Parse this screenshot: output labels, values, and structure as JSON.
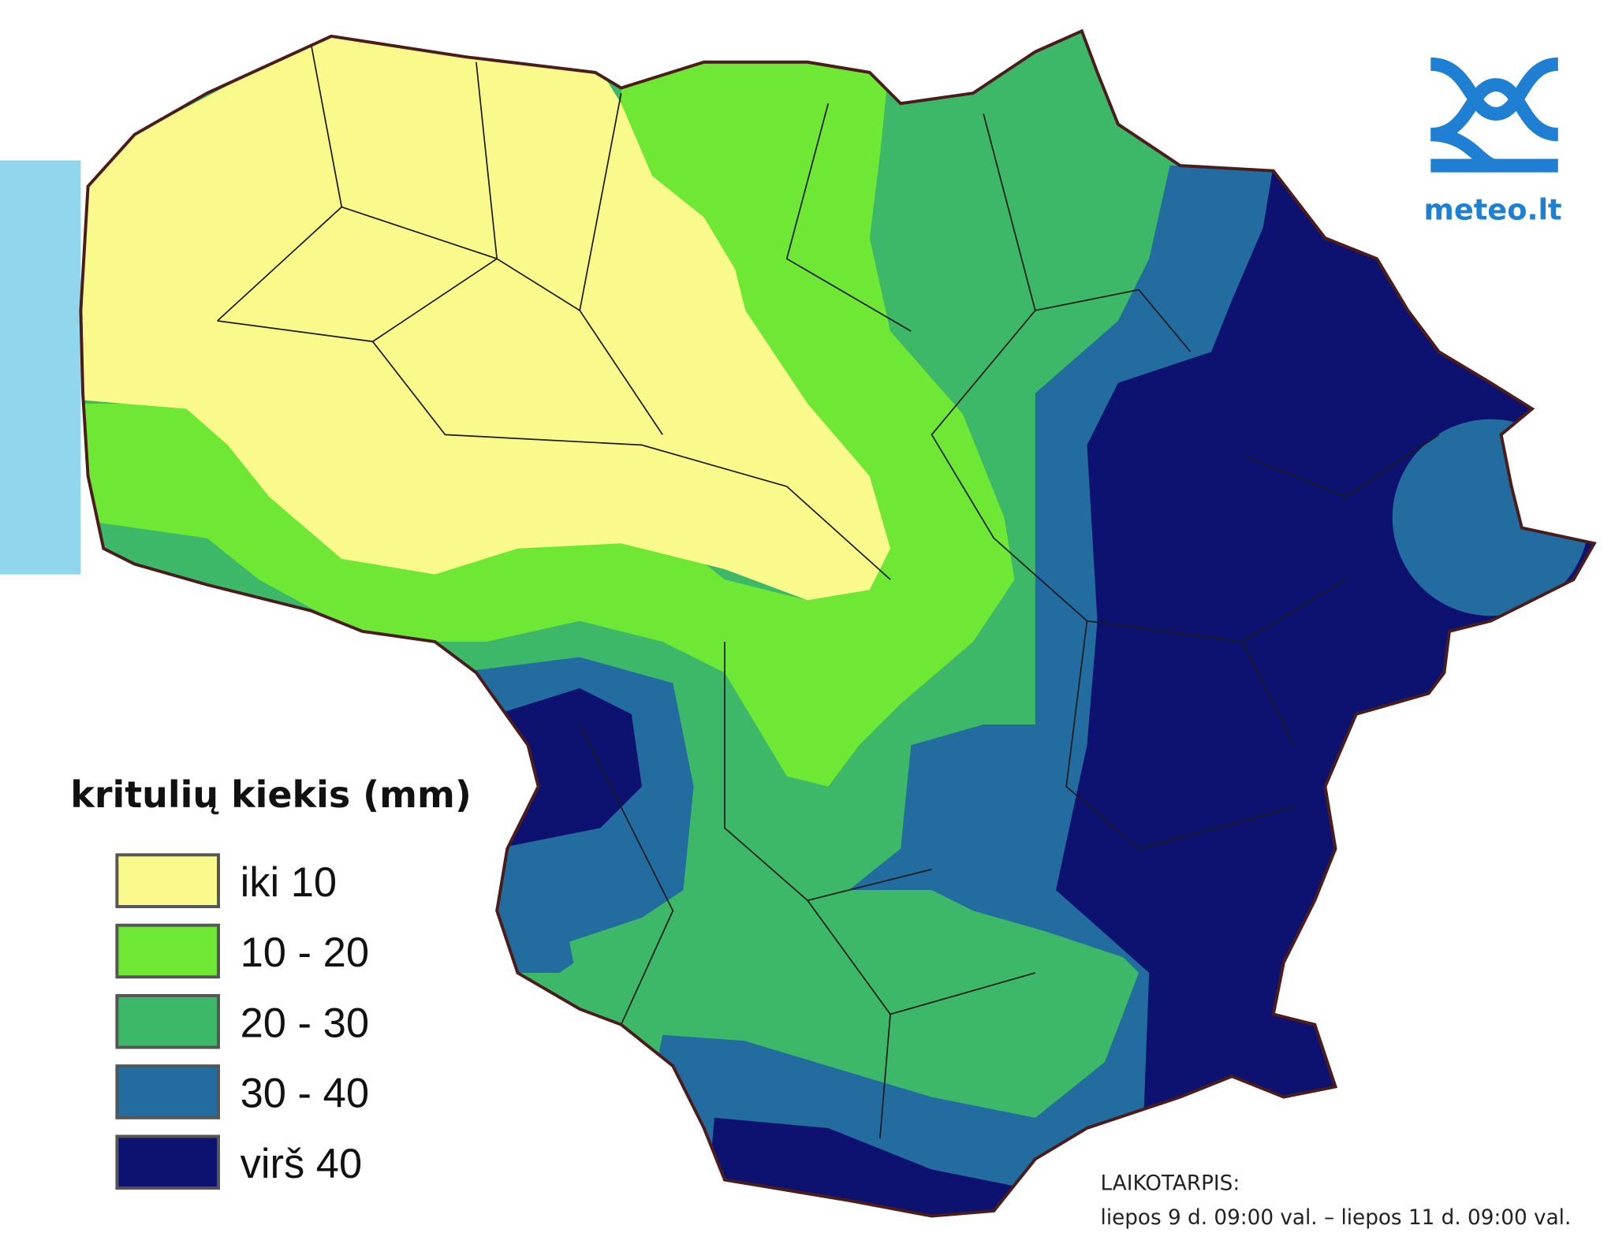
{
  "legend": {
    "title": "kritulių kiekis (mm)",
    "items": [
      {
        "label": "iki 10",
        "color": "#fafa8c"
      },
      {
        "label": "10 - 20",
        "color": "#6ee835"
      },
      {
        "label": "20 - 30",
        "color": "#3cb868"
      },
      {
        "label": "30 - 40",
        "color": "#226c9f"
      },
      {
        "label": "virš 40",
        "color": "#0d1270"
      }
    ]
  },
  "logo": {
    "text": "meteo.lt"
  },
  "period": {
    "label": "LAIKOTARPIS:",
    "text": "liepos 9 d. 09:00 val. – liepos 11 d. 09:00 val."
  }
}
